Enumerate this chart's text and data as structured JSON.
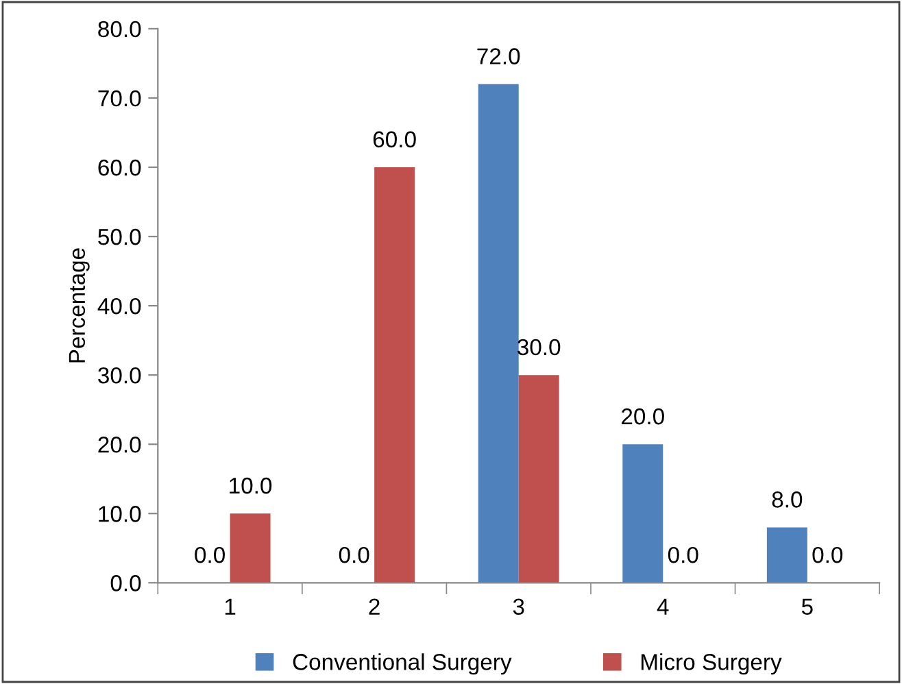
{
  "chart_data": {
    "type": "bar",
    "ylabel": "Percentage",
    "categories": [
      "1",
      "2",
      "3",
      "4",
      "5"
    ],
    "series": [
      {
        "name": "Conventional Surgery",
        "color": "#4f81bd",
        "values": [
          0,
          0,
          72,
          20,
          8
        ],
        "value_labels": [
          "0.0",
          "0.0",
          "72.0",
          "20.0",
          "8.0"
        ]
      },
      {
        "name": "Micro Surgery",
        "color": "#c0504d",
        "values": [
          10,
          60,
          30,
          0,
          0
        ],
        "value_labels": [
          "10.0",
          "60.0",
          "30.0",
          "0.0",
          "0.0"
        ]
      }
    ],
    "ylim": [
      0,
      80
    ],
    "yticks": [
      {
        "value": 0,
        "label": "0.0"
      },
      {
        "value": 10,
        "label": "10.0"
      },
      {
        "value": 20,
        "label": "20.0"
      },
      {
        "value": 30,
        "label": "30.0"
      },
      {
        "value": 40,
        "label": "40.0"
      },
      {
        "value": 50,
        "label": "50.0"
      },
      {
        "value": 60,
        "label": "60.0"
      },
      {
        "value": 70,
        "label": "70.0"
      },
      {
        "value": 80,
        "label": "80.0"
      }
    ],
    "grid": false,
    "legend": "bottom"
  }
}
